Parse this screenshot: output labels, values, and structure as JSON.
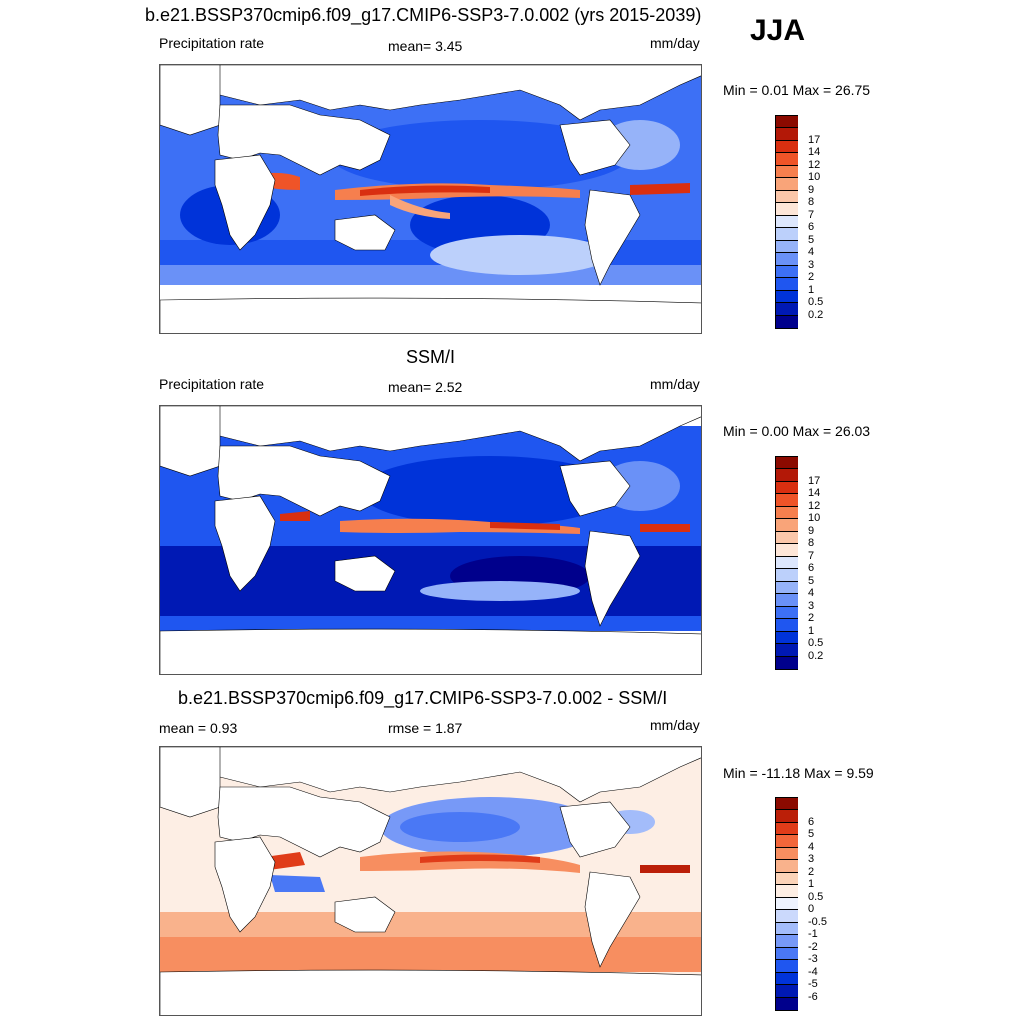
{
  "season": "JJA",
  "colors": {
    "precip_scale": [
      "#00008c",
      "#0019b4",
      "#0033d9",
      "#1f56f0",
      "#3d70f5",
      "#6a91f7",
      "#96b3f9",
      "#bcd0fb",
      "#dde7fd",
      "#fde6d8",
      "#fbc7aa",
      "#f9a479",
      "#f67f4e",
      "#ef5428",
      "#d92f10",
      "#b31807",
      "#8b0a00"
    ],
    "diff_scale": [
      "#00008c",
      "#0019b4",
      "#0033d9",
      "#1f56f0",
      "#4a78f5",
      "#7799f7",
      "#a3bcfa",
      "#cbd9fc",
      "#eef3fe",
      "#fdeee4",
      "#fbd3b8",
      "#f9b28c",
      "#f78e60",
      "#f2663a",
      "#e03c19",
      "#bb1f08",
      "#8b0a00"
    ],
    "land": "#ffffff",
    "coast": "#000000"
  },
  "panels": [
    {
      "title": "b.e21.BSSP370cmip6.f09_g17.CMIP6-SSP3-7.0.002 (yrs 2015-2039)",
      "left_label": "Precipitation rate",
      "center_label": "mean=   3.45",
      "units": "mm/day",
      "minmax": "Min =   0.01 Max =  26.75",
      "ticks": [
        "0.2",
        "0.5",
        "1",
        "2",
        "3",
        "4",
        "5",
        "6",
        "7",
        "8",
        "9",
        "10",
        "12",
        "14",
        "17"
      ]
    },
    {
      "title": "SSM/I",
      "left_label": "Precipitation rate",
      "center_label": "mean=   2.52",
      "units": "mm/day",
      "minmax": "Min =   0.00 Max =  26.03",
      "ticks": [
        "0.2",
        "0.5",
        "1",
        "2",
        "3",
        "4",
        "5",
        "6",
        "7",
        "8",
        "9",
        "10",
        "12",
        "14",
        "17"
      ]
    },
    {
      "title": "b.e21.BSSP370cmip6.f09_g17.CMIP6-SSP3-7.0.002 - SSM/I",
      "left_label": "mean =   0.93",
      "center_label": "rmse =   1.87",
      "units": "mm/day",
      "minmax": "Min = -11.18 Max =   9.59",
      "ticks": [
        "-6",
        "-5",
        "-4",
        "-3",
        "-2",
        "-1",
        "-0.5",
        "0",
        "0.5",
        "1",
        "2",
        "3",
        "4",
        "5",
        "6"
      ]
    }
  ]
}
